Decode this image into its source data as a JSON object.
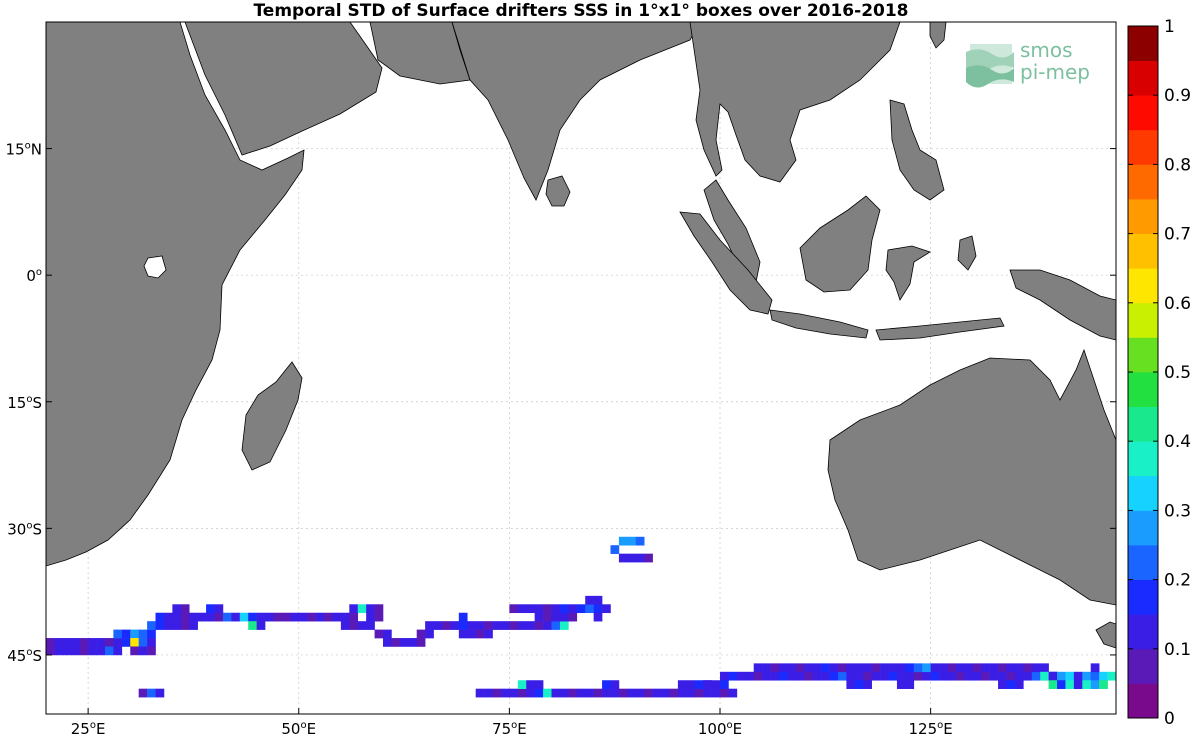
{
  "title": "Temporal STD of Surface drifters SSS in 1°x1° boxes over 2016-2018",
  "logo": {
    "line1": "smos",
    "line2": "pi-mep"
  },
  "chart_data": {
    "type": "heatmap",
    "title": "Temporal STD of Surface drifters SSS in 1°x1° boxes over 2016-2018",
    "xlabel": "",
    "ylabel": "",
    "xlim": [
      20,
      147
    ],
    "ylim": [
      -52,
      30
    ],
    "x_ticks": [
      {
        "value": 25,
        "deg": "25",
        "hemi": "E"
      },
      {
        "value": 50,
        "deg": "50",
        "hemi": "E"
      },
      {
        "value": 75,
        "deg": "75",
        "hemi": "E"
      },
      {
        "value": 100,
        "deg": "100",
        "hemi": "E"
      },
      {
        "value": 125,
        "deg": "125",
        "hemi": "E"
      }
    ],
    "y_ticks": [
      {
        "value": 15,
        "deg": "15",
        "hemi": "N"
      },
      {
        "value": 0,
        "deg": "0",
        "hemi": ""
      },
      {
        "value": -15,
        "deg": "15",
        "hemi": "S"
      },
      {
        "value": -30,
        "deg": "30",
        "hemi": "S"
      },
      {
        "value": -45,
        "deg": "45",
        "hemi": "S"
      }
    ],
    "grid": true,
    "colorbar": {
      "min": 0,
      "max": 1,
      "steps": 20,
      "ticks": [
        "0",
        "0.1",
        "0.2",
        "0.3",
        "0.4",
        "0.5",
        "0.6",
        "0.7",
        "0.8",
        "0.9",
        "1"
      ],
      "colors": [
        "#7a0a8c",
        "#5a1ab8",
        "#3a1ee6",
        "#1a2bff",
        "#1a64ff",
        "#1a9cff",
        "#16d2ff",
        "#1af0c8",
        "#1ae88c",
        "#22e040",
        "#66e020",
        "#c8f000",
        "#ffe600",
        "#ffc000",
        "#ff9a00",
        "#ff6a00",
        "#ff3a00",
        "#ff0a00",
        "#d80000",
        "#8c0000"
      ]
    },
    "land_color": "#808080",
    "cells": [
      {
        "lon": 20,
        "lat": -44,
        "values": [
          0.08,
          0.1,
          0.1,
          0.12,
          0.08,
          0.1,
          0.12,
          0.08,
          0.1
        ]
      },
      {
        "lon": 20,
        "lat": -45,
        "values": [
          0.08,
          0.1,
          0.12,
          0.1,
          0.08,
          0.1,
          0.12,
          0.2,
          0.1
        ]
      },
      {
        "lon": 28,
        "lat": -43,
        "values": [
          0.22,
          0.18,
          0.25,
          0.2,
          0.15
        ]
      },
      {
        "lon": 29,
        "lat": -44,
        "values": [
          0.15,
          0.62,
          0.2,
          0.12
        ]
      },
      {
        "lon": 30,
        "lat": -45,
        "values": [
          0.08,
          0.1,
          0.08
        ]
      },
      {
        "lon": 32,
        "lat": -42,
        "values": [
          0.2,
          0.15,
          0.1,
          0.12,
          0.08,
          0.1
        ]
      },
      {
        "lon": 33,
        "lat": -41,
        "values": [
          0.15,
          0.12,
          0.1,
          0.08,
          0.1,
          0.12,
          0.1,
          0.08,
          0.2,
          0.1,
          0.3,
          0.15,
          0.12,
          0.1,
          0.08,
          0.08,
          0.1,
          0.12,
          0.08,
          0.1,
          0.08,
          0.12,
          0.1,
          0.08
        ]
      },
      {
        "lon": 35,
        "lat": -40,
        "values": [
          0.1,
          0.08
        ]
      },
      {
        "lon": 39,
        "lat": -40,
        "values": [
          0.15,
          0.1
        ]
      },
      {
        "lon": 44,
        "lat": -42,
        "values": [
          0.4,
          0.12
        ]
      },
      {
        "lon": 56,
        "lat": -40,
        "values": [
          0.1,
          0.35,
          0.12,
          0.08
        ]
      },
      {
        "lon": 55,
        "lat": -42,
        "values": [
          0.1,
          0.08,
          0.1,
          0.12
        ]
      },
      {
        "lon": 58,
        "lat": -41,
        "values": [
          0.1,
          0.08
        ]
      },
      {
        "lon": 59,
        "lat": -43,
        "values": [
          0.08,
          0.12
        ]
      },
      {
        "lon": 60,
        "lat": -44,
        "values": [
          0.1,
          0.08,
          0.12,
          0.1,
          0.08
        ]
      },
      {
        "lon": 64,
        "lat": -43,
        "values": [
          0.08,
          0.1
        ]
      },
      {
        "lon": 65,
        "lat": -42,
        "values": [
          0.1,
          0.12,
          0.08,
          0.1,
          0.15,
          0.1,
          0.12,
          0.08,
          0.1,
          0.12,
          0.08,
          0.1,
          0.12,
          0.08,
          0.1,
          0.2,
          0.35
        ]
      },
      {
        "lon": 69,
        "lat": -43,
        "values": [
          0.1,
          0.12,
          0.08,
          0.1
        ]
      },
      {
        "lon": 69,
        "lat": -41,
        "values": [
          0.18
        ]
      },
      {
        "lon": 75,
        "lat": -40,
        "values": [
          0.08,
          0.1,
          0.12,
          0.1,
          0.08,
          0.1
        ]
      },
      {
        "lon": 78,
        "lat": -41,
        "values": [
          0.1,
          0.08,
          0.12,
          0.1,
          0.08
        ]
      },
      {
        "lon": 81,
        "lat": -40,
        "values": [
          0.15,
          0.12,
          0.18,
          0.2,
          0.15,
          0.12
        ]
      },
      {
        "lon": 84,
        "lat": -39,
        "values": [
          0.1,
          0.12
        ]
      },
      {
        "lon": 85,
        "lat": -41,
        "values": [
          0.1
        ]
      },
      {
        "lon": 88,
        "lat": -32,
        "values": [
          0.25,
          0.28,
          0.22
        ]
      },
      {
        "lon": 87,
        "lat": -33,
        "values": [
          0.22
        ]
      },
      {
        "lon": 88,
        "lat": -34,
        "values": [
          0.1,
          0.12,
          0.1,
          0.08
        ]
      },
      {
        "lon": 31,
        "lat": -50,
        "values": [
          0.08,
          0.2,
          0.1
        ]
      },
      {
        "lon": 71,
        "lat": -50,
        "values": [
          0.1,
          0.12,
          0.08,
          0.1,
          0.12,
          0.08,
          0.1,
          0.15,
          0.38,
          0.12,
          0.1,
          0.08,
          0.1,
          0.12,
          0.08,
          0.1,
          0.12,
          0.08,
          0.1,
          0.12,
          0.08,
          0.1,
          0.12,
          0.08,
          0.1,
          0.12,
          0.08,
          0.1,
          0.12,
          0.08,
          0.1
        ]
      },
      {
        "lon": 76,
        "lat": -49,
        "values": [
          0.38,
          0.12,
          0.1
        ]
      },
      {
        "lon": 86,
        "lat": -49,
        "values": [
          0.15,
          0.1
        ]
      },
      {
        "lon": 95,
        "lat": -49,
        "values": [
          0.12,
          0.1,
          0.15,
          0.12
        ]
      },
      {
        "lon": 100,
        "lat": -48,
        "values": [
          0.1,
          0.15,
          0.1,
          0.12,
          0.08,
          0.1,
          0.12,
          0.15,
          0.1,
          0.12,
          0.08,
          0.1,
          0.12,
          0.15,
          0.2,
          0.1,
          0.12,
          0.08,
          0.1,
          0.12,
          0.15,
          0.1,
          0.12,
          0.08,
          0.1,
          0.15,
          0.12,
          0.1,
          0.08,
          0.1,
          0.12,
          0.08,
          0.1,
          0.12,
          0.08,
          0.1,
          0.12,
          0.2,
          0.1,
          0.15
        ]
      },
      {
        "lon": 104,
        "lat": -47,
        "values": [
          0.12,
          0.1,
          0.08,
          0.1,
          0.12,
          0.08,
          0.1,
          0.12,
          0.15,
          0.1,
          0.08,
          0.1,
          0.12,
          0.1,
          0.08,
          0.1,
          0.12,
          0.1,
          0.15,
          0.2,
          0.25,
          0.12,
          0.1,
          0.08,
          0.1,
          0.12,
          0.08,
          0.1,
          0.12,
          0.08,
          0.1,
          0.12,
          0.08,
          0.1,
          0.12
        ]
      },
      {
        "lon": 98,
        "lat": -49,
        "values": [
          0.1,
          0.12,
          0.15
        ]
      },
      {
        "lon": 115,
        "lat": -49,
        "values": [
          0.1,
          0.15,
          0.12
        ]
      },
      {
        "lon": 121,
        "lat": -49,
        "values": [
          0.12,
          0.1
        ]
      },
      {
        "lon": 133,
        "lat": -49,
        "values": [
          0.1,
          0.15,
          0.12
        ]
      },
      {
        "lon": 138,
        "lat": -48,
        "values": [
          0.35,
          0.1,
          0.25,
          0.3,
          0.12,
          0.25,
          0.2,
          0.3,
          0.35
        ]
      },
      {
        "lon": 139,
        "lat": -49,
        "values": [
          0.4,
          0.15,
          0.35,
          0.12,
          0.38,
          0.25,
          0.4
        ]
      },
      {
        "lon": 144,
        "lat": -47,
        "values": [
          0.1
        ]
      }
    ]
  }
}
